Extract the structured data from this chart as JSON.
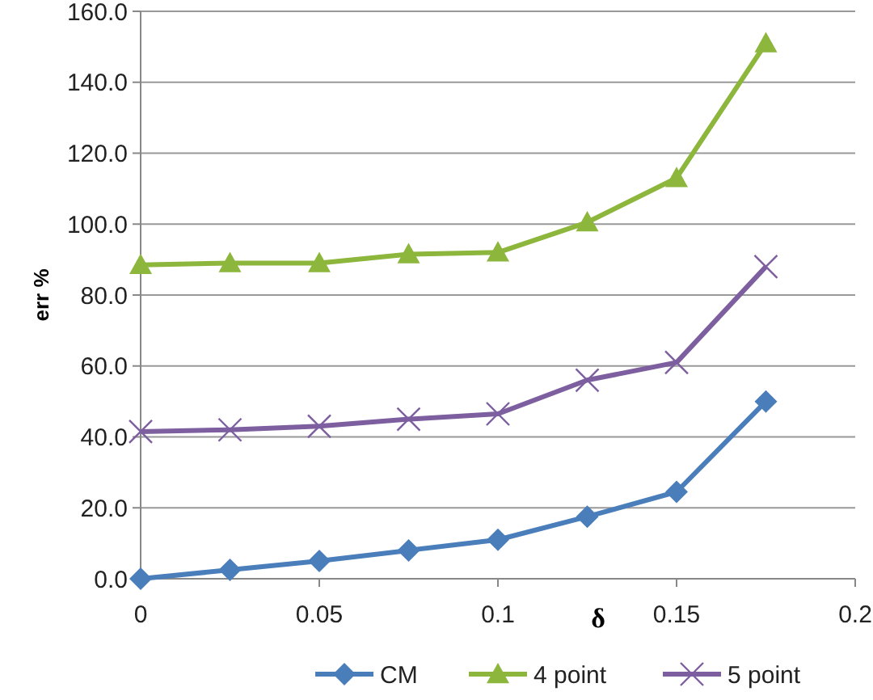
{
  "chart_data": {
    "type": "line",
    "xlabel": "δ",
    "ylabel": "err %",
    "x": [
      0,
      0.025,
      0.05,
      0.075,
      0.1,
      0.125,
      0.15,
      0.175
    ],
    "xlim": [
      0,
      0.2
    ],
    "xticks": [
      0,
      0.05,
      0.1,
      0.15,
      0.2
    ],
    "ylim": [
      0,
      160
    ],
    "yticks": [
      {
        "value": 0,
        "label": "0.0"
      },
      {
        "value": 20,
        "label": "20.0"
      },
      {
        "value": 40,
        "label": "40.0"
      },
      {
        "value": 60,
        "label": "60.0"
      },
      {
        "value": 80,
        "label": "80.0"
      },
      {
        "value": 100,
        "label": "100.0"
      },
      {
        "value": 120,
        "label": "120.0"
      },
      {
        "value": 140,
        "label": "140.0"
      },
      {
        "value": 160,
        "label": "160.0"
      }
    ],
    "grid": "y",
    "legend": "bottom",
    "line_style": "solid",
    "series": [
      {
        "name": "CM",
        "color": "#4a7ebb",
        "marker": "diamond",
        "values": [
          0,
          2.5,
          5,
          8,
          11,
          17.5,
          24.5,
          50
        ]
      },
      {
        "name": "4 point",
        "color": "#8db63c",
        "marker": "triangle",
        "values": [
          88.5,
          89,
          89,
          91.5,
          92,
          100.5,
          113,
          151
        ]
      },
      {
        "name": "5 point",
        "color": "#7d5fa0",
        "marker": "cross",
        "values": [
          41.5,
          42,
          43,
          45,
          46.5,
          56,
          61,
          88
        ]
      }
    ]
  }
}
